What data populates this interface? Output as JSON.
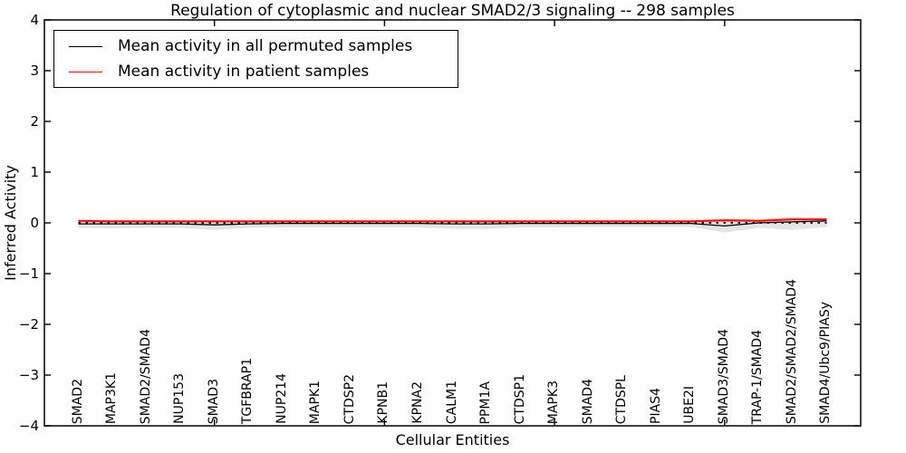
{
  "figure": {
    "background": "#ffffff",
    "frame_color": "#000000"
  },
  "chart_data": {
    "type": "line",
    "title": "Regulation of cytoplasmic and nuclear SMAD2/3 signaling -- 298 samples",
    "xlabel": "Cellular Entities",
    "ylabel": "Inferred Activity",
    "ylim": [
      -4,
      4
    ],
    "xlim": [
      0,
      24
    ],
    "yticks": [
      4,
      3,
      2,
      1,
      0,
      -1,
      -2,
      -3,
      -4
    ],
    "ytick_labels": [
      "4",
      "3",
      "2",
      "1",
      "0",
      "−1",
      "−2",
      "−3",
      "−4"
    ],
    "xaxis_numeric_ticks": [
      5,
      10,
      15,
      20
    ],
    "grid": false,
    "legend_position": "upper left",
    "reference_line": {
      "y": 0,
      "color": "#000000",
      "style": "dotted"
    },
    "categories": [
      "SMAD2",
      "MAP3K1",
      "SMAD2/SMAD4",
      "NUP153",
      "SMAD3",
      "TGFBRAP1",
      "NUP214",
      "MAPK1",
      "CTDSP2",
      "KPNB1",
      "KPNA2",
      "CALM1",
      "PPM1A",
      "CTDSP1",
      "MAPK3",
      "SMAD4",
      "CTDSPL",
      "PIAS4",
      "UBE2I",
      "SMAD3/SMAD4",
      "TRAP-1/SMAD4",
      "SMAD2/SMAD2/SMAD4",
      "SMAD4/Ubc9/PIASy"
    ],
    "series": [
      {
        "name": "Mean activity in all permuted samples",
        "color": "#000000",
        "line_width": 1.3,
        "values": [
          -0.02,
          -0.02,
          -0.02,
          -0.02,
          -0.04,
          -0.02,
          -0.01,
          -0.01,
          -0.01,
          -0.01,
          -0.01,
          -0.02,
          -0.02,
          -0.01,
          -0.01,
          -0.01,
          -0.01,
          -0.01,
          -0.01,
          -0.06,
          0.0,
          0.02,
          0.04
        ],
        "band_high": [
          0.05,
          0.05,
          0.05,
          0.05,
          0.05,
          0.05,
          0.05,
          0.05,
          0.05,
          0.05,
          0.05,
          0.05,
          0.05,
          0.05,
          0.05,
          0.05,
          0.05,
          0.05,
          0.05,
          0.07,
          0.08,
          0.1,
          0.09
        ],
        "band_low": [
          -0.1,
          -0.11,
          -0.1,
          -0.1,
          -0.14,
          -0.1,
          -0.09,
          -0.09,
          -0.09,
          -0.09,
          -0.09,
          -0.12,
          -0.12,
          -0.09,
          -0.09,
          -0.08,
          -0.08,
          -0.08,
          -0.08,
          -0.19,
          -0.1,
          -0.14,
          -0.08
        ],
        "band_color": "rgba(0,0,0,0.10)"
      },
      {
        "name": "Mean activity in patient samples",
        "color": "#ff0000",
        "line_width": 1.8,
        "values": [
          0.04,
          0.03,
          0.03,
          0.03,
          0.03,
          0.03,
          0.03,
          0.03,
          0.03,
          0.03,
          0.03,
          0.03,
          0.03,
          0.03,
          0.03,
          0.03,
          0.03,
          0.03,
          0.03,
          0.05,
          0.04,
          0.07,
          0.07
        ],
        "band_high": [
          0.07,
          0.06,
          0.06,
          0.06,
          0.06,
          0.06,
          0.06,
          0.06,
          0.06,
          0.06,
          0.06,
          0.06,
          0.06,
          0.06,
          0.06,
          0.06,
          0.06,
          0.06,
          0.06,
          0.09,
          0.07,
          0.11,
          0.1
        ],
        "band_low": [
          0.01,
          0.0,
          0.0,
          0.0,
          0.0,
          0.0,
          0.0,
          0.0,
          0.0,
          0.0,
          0.0,
          0.0,
          0.0,
          0.0,
          0.0,
          0.0,
          0.0,
          0.0,
          0.0,
          0.02,
          0.01,
          0.03,
          0.04
        ],
        "band_color": "rgba(255,0,0,0.20)"
      }
    ]
  }
}
